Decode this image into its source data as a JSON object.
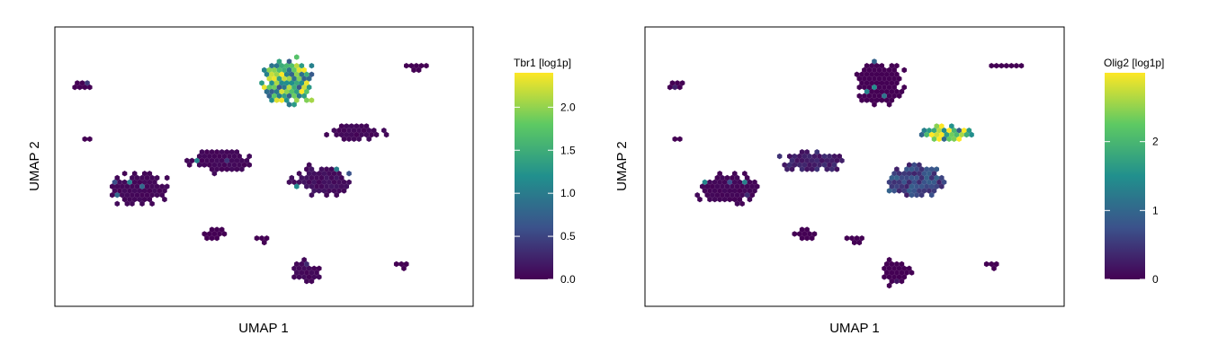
{
  "chart_data": [
    {
      "type": "heatmap",
      "subtype": "hexbin-umap-feature-plot",
      "title": "",
      "xlabel": "UMAP 1",
      "ylabel": "UMAP 2",
      "grid": false,
      "colorscale": "viridis",
      "colorscale_stops": [
        "#440154",
        "#3b528b",
        "#21908d",
        "#5dc963",
        "#fde725"
      ],
      "legend": {
        "title": "Tbr1 [log1p]",
        "placement": "right",
        "range": [
          0,
          2.4
        ],
        "ticks": [
          0.0,
          0.5,
          1.0,
          1.5,
          2.0
        ],
        "tick_labels": [
          "0.0",
          "0.5",
          "1.0",
          "1.5",
          "2.0"
        ]
      },
      "clusters": [
        {
          "x": 0.56,
          "y": 0.8,
          "spread": [
            0.09,
            0.11
          ],
          "expression": 1.5
        },
        {
          "x": 0.2,
          "y": 0.42,
          "spread": [
            0.1,
            0.08
          ],
          "expression": 0.05
        },
        {
          "x": 0.4,
          "y": 0.52,
          "spread": [
            0.1,
            0.06
          ],
          "expression": 0.05
        },
        {
          "x": 0.64,
          "y": 0.45,
          "spread": [
            0.1,
            0.08
          ],
          "expression": 0.1
        },
        {
          "x": 0.72,
          "y": 0.62,
          "spread": [
            0.09,
            0.04
          ],
          "expression": 0.05
        },
        {
          "x": 0.6,
          "y": 0.12,
          "spread": [
            0.05,
            0.06
          ],
          "expression": 0.05
        },
        {
          "x": 0.86,
          "y": 0.86,
          "spread": [
            0.05,
            0.02
          ],
          "expression": 0.0
        },
        {
          "x": 0.07,
          "y": 0.79,
          "spread": [
            0.04,
            0.02
          ],
          "expression": 0.0
        },
        {
          "x": 0.08,
          "y": 0.6,
          "spread": [
            0.02,
            0.02
          ],
          "expression": 0.0
        },
        {
          "x": 0.38,
          "y": 0.26,
          "spread": [
            0.04,
            0.03
          ],
          "expression": 0.0
        },
        {
          "x": 0.5,
          "y": 0.24,
          "spread": [
            0.03,
            0.02
          ],
          "expression": 0.0
        },
        {
          "x": 0.83,
          "y": 0.15,
          "spread": [
            0.02,
            0.02
          ],
          "expression": 0.0
        }
      ]
    },
    {
      "type": "heatmap",
      "subtype": "hexbin-umap-feature-plot",
      "title": "",
      "xlabel": "UMAP 1",
      "ylabel": "UMAP 2",
      "grid": false,
      "colorscale": "viridis",
      "colorscale_stops": [
        "#440154",
        "#3b528b",
        "#21908d",
        "#5dc963",
        "#fde725"
      ],
      "legend": {
        "title": "Olig2 [log1p]",
        "placement": "right",
        "range": [
          0,
          3.0
        ],
        "ticks": [
          0,
          1,
          2
        ],
        "tick_labels": [
          "0",
          "1",
          "2"
        ]
      },
      "clusters": [
        {
          "x": 0.56,
          "y": 0.8,
          "spread": [
            0.09,
            0.11
          ],
          "expression": 0.0
        },
        {
          "x": 0.2,
          "y": 0.42,
          "spread": [
            0.1,
            0.08
          ],
          "expression": 0.05
        },
        {
          "x": 0.4,
          "y": 0.52,
          "spread": [
            0.1,
            0.06
          ],
          "expression": 0.3
        },
        {
          "x": 0.64,
          "y": 0.45,
          "spread": [
            0.1,
            0.08
          ],
          "expression": 0.6
        },
        {
          "x": 0.72,
          "y": 0.62,
          "spread": [
            0.09,
            0.04
          ],
          "expression": 2.3
        },
        {
          "x": 0.6,
          "y": 0.12,
          "spread": [
            0.05,
            0.06
          ],
          "expression": 0.0
        },
        {
          "x": 0.86,
          "y": 0.86,
          "spread": [
            0.05,
            0.02
          ],
          "expression": 0.0
        },
        {
          "x": 0.07,
          "y": 0.79,
          "spread": [
            0.04,
            0.02
          ],
          "expression": 0.0
        },
        {
          "x": 0.08,
          "y": 0.6,
          "spread": [
            0.02,
            0.02
          ],
          "expression": 0.0
        },
        {
          "x": 0.38,
          "y": 0.26,
          "spread": [
            0.04,
            0.03
          ],
          "expression": 0.0
        },
        {
          "x": 0.5,
          "y": 0.24,
          "spread": [
            0.03,
            0.02
          ],
          "expression": 0.0
        },
        {
          "x": 0.83,
          "y": 0.15,
          "spread": [
            0.02,
            0.02
          ],
          "expression": 0.0
        }
      ]
    }
  ]
}
